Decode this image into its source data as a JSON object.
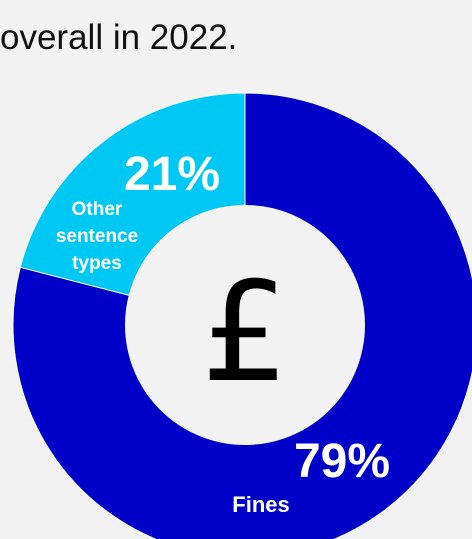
{
  "heading": "overall in 2022.",
  "center_symbol": "£",
  "chart_data": {
    "type": "pie",
    "variant": "donut",
    "title": "",
    "slices": [
      {
        "label": "Fines",
        "value": 79,
        "value_label": "79%",
        "color": "#0000c8"
      },
      {
        "label": "Other sentence types",
        "value": 21,
        "value_label": "21%",
        "color": "#00c8f5"
      }
    ],
    "legend": "none",
    "start_angle": "12 o'clock, clockwise"
  },
  "labels": {
    "fines_pct": "79%",
    "fines_name": "Fines",
    "other_pct": "21%",
    "other_line1": "Other",
    "other_line2": "sentence",
    "other_line3": "types"
  }
}
